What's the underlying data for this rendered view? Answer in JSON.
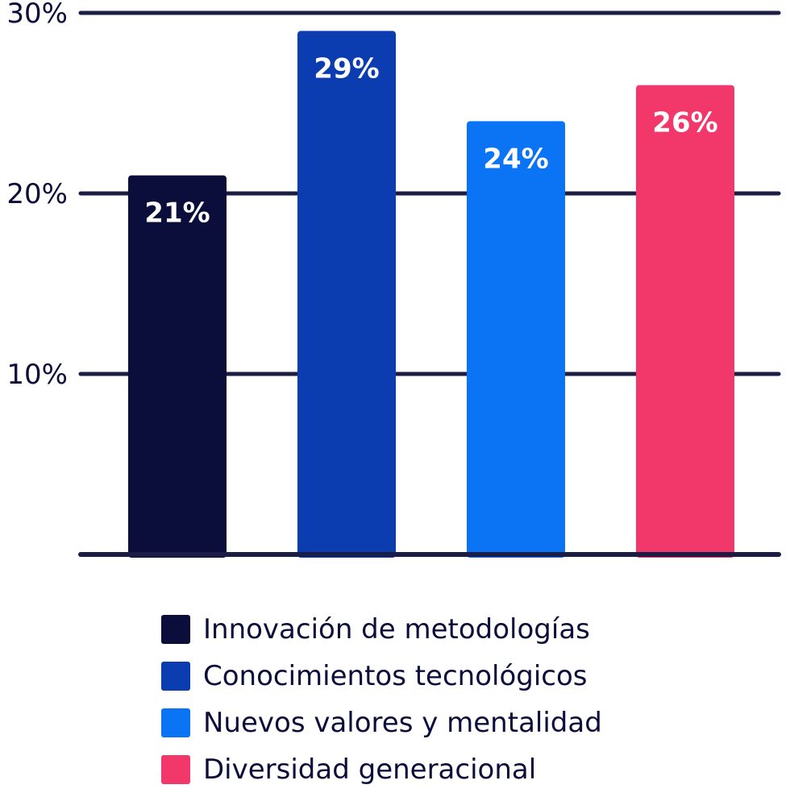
{
  "chart_data": {
    "type": "bar",
    "categories": [
      "Innovación de metodologías",
      "Conocimientos tecnológicos",
      "Nuevos valores y mentalidad",
      "Diversidad generacional"
    ],
    "values": [
      21,
      29,
      24,
      26
    ],
    "value_labels": [
      "21%",
      "29%",
      "24%",
      "26%"
    ],
    "colors": [
      "#0b0d3a",
      "#0b3cb0",
      "#0a74f5",
      "#f2376a"
    ],
    "ylim": [
      0,
      30
    ],
    "yticks": [
      10,
      20,
      30
    ],
    "ytick_labels": [
      "10%",
      "20%",
      "30%"
    ],
    "grid": true,
    "legend_position": "bottom"
  }
}
